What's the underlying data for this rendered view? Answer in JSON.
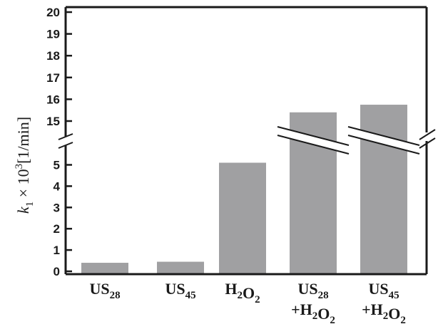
{
  "chart_data": {
    "type": "bar",
    "categories": [
      {
        "line1": "US",
        "line1_sub": "28",
        "line2": "",
        "line2_sub": ""
      },
      {
        "line1": "US",
        "line1_sub": "45",
        "line2": "",
        "line2_sub": ""
      },
      {
        "line1": "H",
        "line1_sub": "2",
        "line1_b": "O",
        "line1_b_sub": "2",
        "line2": "",
        "line2_sub": ""
      },
      {
        "line1": "US",
        "line1_sub": "28",
        "line2": "+H",
        "line2_sub": "2",
        "line2_b": "O",
        "line2_b_sub": "2"
      },
      {
        "line1": "US",
        "line1_sub": "45",
        "line2": "+H",
        "line2_sub": "2",
        "line2_b": "O",
        "line2_b_sub": "2"
      }
    ],
    "values": [
      0.4,
      0.45,
      5.1,
      15.4,
      15.75
    ],
    "ylabel": {
      "k": "k",
      "k_sub": "1",
      "times": " × 10",
      "exp": "3",
      "unit": "[1/min]"
    },
    "y_lower_ticks": [
      0,
      1,
      2,
      3,
      4,
      5
    ],
    "y_upper_ticks": [
      15,
      16,
      17,
      18,
      19,
      20
    ],
    "axis_break": {
      "lower_range": [
        0,
        5.6
      ],
      "upper_range": [
        14.5,
        20.2
      ]
    },
    "colors": {
      "bar": "#a0a0a2",
      "axis": "#1a1a1a"
    }
  }
}
